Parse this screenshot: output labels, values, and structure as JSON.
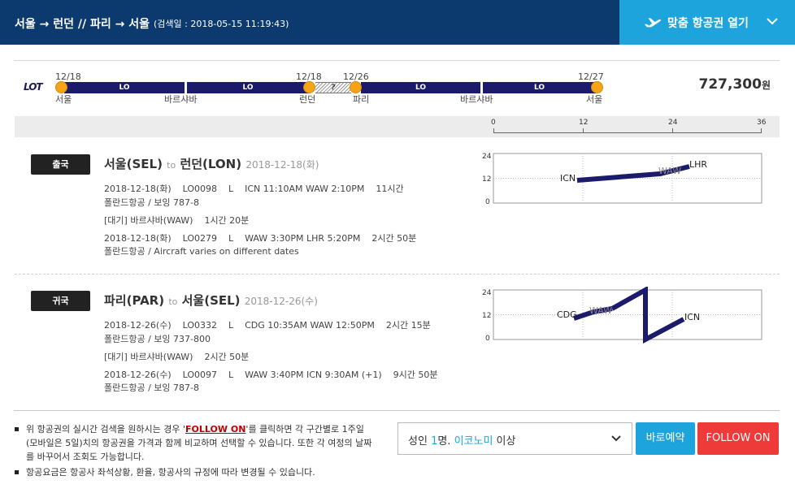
{
  "header": {
    "route": "서울 → 런던 // 파리 → 서울",
    "search_date": "(검색일 : 2018-05-15 11:19:43)",
    "open_button": "맞춤 항공권 열기",
    "plane_icon": "plane-icon",
    "chevron_icon": "chevron-down-icon"
  },
  "itinerary": {
    "airline_logo": "LOT",
    "segment_code": "LO",
    "gap_label": "?",
    "dates": [
      "12/18",
      "12/18",
      "12/26",
      "12/27"
    ],
    "cities": [
      "서울",
      "바르샤바",
      "런던",
      "파리",
      "바르샤바",
      "서울"
    ],
    "price": "727,300",
    "price_unit": "원",
    "axis_ticks": [
      "0",
      "12",
      "24",
      "36"
    ],
    "colors": {
      "segment": "#1c1a6b",
      "stop": "#f5a317"
    }
  },
  "outbound": {
    "badge": "출국",
    "from": "서울(SEL)",
    "to_word": "to",
    "to": "런던(LON)",
    "date": "2018-12-18(화)",
    "flight1": "2018-12-18(화)    LO0098    L    ICN 11:10AM WAW 2:10PM    11시간",
    "aircraft1": "폴란드항공 / 보잉 787-8",
    "layover": "[대기] 바르샤바(WAW)    1시간 20분",
    "flight2": "2018-12-18(화)    LO0279    L    WAW 3:30PM LHR 5:20PM    2시간 50분",
    "aircraft2": "폴란드항공 / Aircraft varies on different dates",
    "chart": {
      "y_ticks": [
        "24",
        "12",
        "0"
      ],
      "path_x": [
        0,
        9.2,
        11.3
      ],
      "path_y": [
        2,
        3.6,
        5.7
      ],
      "airports": [
        "ICN",
        "WAW",
        "LHR"
      ]
    }
  },
  "inbound": {
    "badge": "귀국",
    "from": "파리(PAR)",
    "to_word": "to",
    "to": "서울(SEL)",
    "date": "2018-12-26(수)",
    "flight1": "2018-12-26(수)    LO0332    L    CDG 10:35AM WAW 12:50PM    2시간 15분",
    "aircraft1": "폴란드항공 / 보잉 737-800",
    "layover": "[대기] 바르샤바(WAW)    2시간 50분",
    "flight2": "2018-12-26(수)    LO0097    L    WAW 3:40PM ICN 9:30AM (+1)    9시간 50분",
    "aircraft2": "폴란드항공 / 보잉 787-8",
    "chart": {
      "y_ticks": [
        "24",
        "12",
        "0"
      ],
      "airports": [
        "CDG",
        "WAW",
        "ICN"
      ]
    }
  },
  "footer": {
    "note1_a": "위 항공권의 실시간 검색을 원하시는 경우 '",
    "note1_link": "FOLLOW ON",
    "note1_b": "'를 클릭하면 각 구간별로 1주일(모바일은 5일)치의 항공권을 가격과 함께 비교하며 선택할 수 있습니다. 또한 각 여정의 날짜를 바꾸어서 조회도 가능합니다.",
    "note2": "항공요금은 항공사 좌석상황, 환율, 항공사의 규정에 따라 변경될 수 있습니다.",
    "pax_prefix": "성인 ",
    "pax_count": "1",
    "pax_mid": "명. ",
    "pax_class": "이코노미",
    "pax_suffix": " 이상",
    "book_button": "바로예약",
    "follow_button": "FOLLOW ON"
  }
}
